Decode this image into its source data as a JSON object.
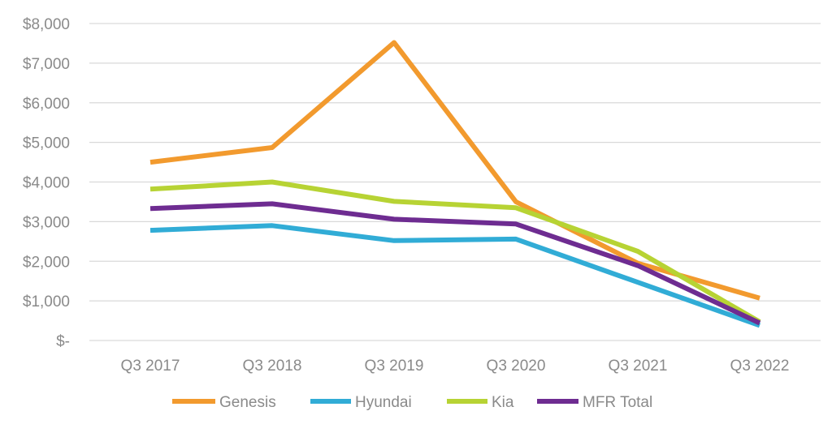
{
  "chart_data": {
    "type": "line",
    "title": "",
    "xlabel": "",
    "ylabel": "",
    "categories": [
      "Q3 2017",
      "Q3 2018",
      "Q3 2019",
      "Q3 2020",
      "Q3 2021",
      "Q3 2022"
    ],
    "ylim": [
      0,
      8000
    ],
    "y_ticks": [
      0,
      1000,
      2000,
      3000,
      4000,
      5000,
      6000,
      7000,
      8000
    ],
    "y_tick_labels": [
      "$-",
      "$1,000",
      "$2,000",
      "$3,000",
      "$4,000",
      "$5,000",
      "$6,000",
      "$7,000",
      "$8,000"
    ],
    "grid": true,
    "legend_position": "bottom",
    "series": [
      {
        "name": "Genesis",
        "color": "#f29a2e",
        "values": [
          4500,
          4870,
          7520,
          3500,
          1950,
          1070
        ]
      },
      {
        "name": "Hyundai",
        "color": "#31acd6",
        "values": [
          2780,
          2900,
          2520,
          2560,
          1470,
          380
        ]
      },
      {
        "name": "Kia",
        "color": "#b7d334",
        "values": [
          3820,
          4000,
          3510,
          3350,
          2250,
          470
        ]
      },
      {
        "name": "MFR Total",
        "color": "#6e2c91",
        "values": [
          3330,
          3450,
          3060,
          2940,
          1890,
          440
        ]
      }
    ]
  }
}
